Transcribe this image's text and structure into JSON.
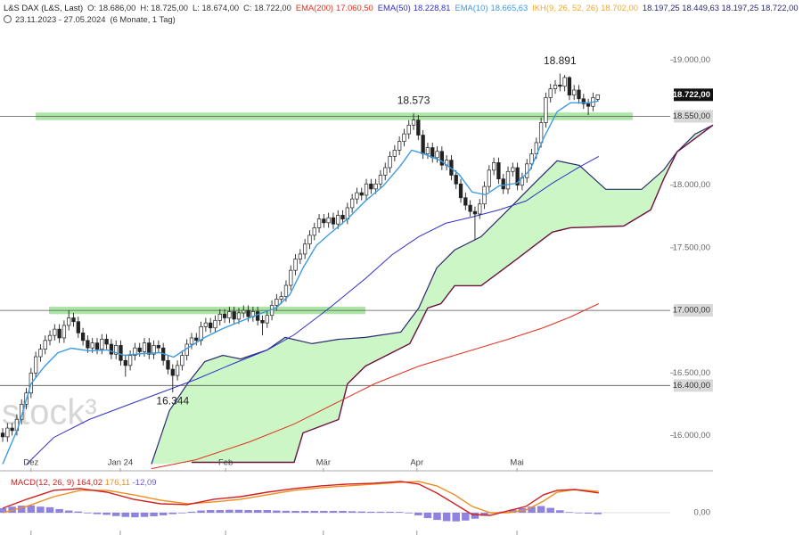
{
  "chart_data": {
    "type": "candlestick",
    "header": {
      "symbol": "L&S DAX (L&S, Last)",
      "ohlc": [
        "O: 18.686,00",
        "H: 18.725,00",
        "L: 18.674,00",
        "C: 18.722,00"
      ],
      "period": "23.11.2023 - 27.05.2024",
      "span": "(6 Monate, 1 Tag)"
    },
    "watermark": "stock³",
    "up_color": "#ffffff",
    "down_color": "#222222",
    "candles": {
      "open": [
        16020,
        15990,
        16060,
        16040,
        16130,
        16250,
        16340,
        16500,
        16630,
        16690,
        16760,
        16800,
        16850,
        16780,
        16880,
        16940,
        16910,
        16820,
        16760,
        16700,
        16740,
        16690,
        16770,
        16730,
        16650,
        16720,
        16600,
        16560,
        16640,
        16700,
        16670,
        16740,
        16650,
        16720,
        16700,
        16600,
        16530,
        16480,
        16560,
        16640,
        16730,
        16780,
        16760,
        16870,
        16900,
        16860,
        16920,
        16970,
        16940,
        16990,
        16930,
        16980,
        17000,
        16950,
        16990,
        16920,
        16900,
        16960,
        17040,
        17090,
        17110,
        17200,
        17320,
        17410,
        17450,
        17530,
        17600,
        17660,
        17730,
        17700,
        17740,
        17690,
        17760,
        17730,
        17820,
        17890,
        17940,
        17920,
        18010,
        17970,
        18010,
        18080,
        18140,
        18230,
        18280,
        18350,
        18410,
        18480,
        18520,
        18400,
        18250,
        18300,
        18220,
        18270,
        18160,
        18200,
        18080,
        18010,
        17900,
        17840,
        17790,
        17770,
        17850,
        17990,
        18120,
        18180,
        18050,
        17970,
        18110,
        18140,
        18000,
        18060,
        18170,
        18250,
        18340,
        18500,
        18700,
        18770,
        18800,
        18790,
        18860,
        18720,
        18760,
        18690,
        18650,
        18630,
        18686
      ],
      "high": [
        16060,
        16100,
        16100,
        16170,
        16290,
        16380,
        16540,
        16670,
        16730,
        16800,
        16840,
        16890,
        16890,
        16920,
        17000,
        16980,
        16950,
        16860,
        16800,
        16780,
        16780,
        16810,
        16810,
        16770,
        16760,
        16760,
        16640,
        16680,
        16740,
        16740,
        16780,
        16780,
        16760,
        16760,
        16740,
        16640,
        16570,
        16600,
        16680,
        16770,
        16820,
        16820,
        16910,
        16940,
        16940,
        16960,
        17010,
        17010,
        17030,
        17030,
        17020,
        17040,
        17040,
        17030,
        17030,
        16960,
        17000,
        17080,
        17130,
        17150,
        17240,
        17360,
        17450,
        17490,
        17570,
        17640,
        17700,
        17770,
        17770,
        17780,
        17780,
        17800,
        17800,
        17860,
        17930,
        17980,
        17980,
        18050,
        18050,
        18050,
        18120,
        18180,
        18270,
        18320,
        18390,
        18450,
        18520,
        18573,
        18560,
        18440,
        18340,
        18340,
        18310,
        18310,
        18240,
        18240,
        18120,
        18050,
        17940,
        17880,
        17830,
        17890,
        18030,
        18160,
        18220,
        18220,
        18090,
        18150,
        18180,
        18180,
        18100,
        18210,
        18290,
        18380,
        18540,
        18740,
        18810,
        18840,
        18891,
        18880,
        18870,
        18800,
        18800,
        18730,
        18690,
        18740,
        18725
      ],
      "low": [
        15950,
        15950,
        16000,
        16000,
        16090,
        16210,
        16300,
        16460,
        16590,
        16650,
        16720,
        16760,
        16740,
        16740,
        16840,
        16870,
        16780,
        16720,
        16660,
        16660,
        16650,
        16650,
        16690,
        16610,
        16610,
        16560,
        16470,
        16520,
        16600,
        16630,
        16630,
        16610,
        16610,
        16660,
        16560,
        16490,
        16344,
        16440,
        16520,
        16600,
        16690,
        16720,
        16720,
        16830,
        16820,
        16820,
        16880,
        16900,
        16900,
        16890,
        16890,
        16940,
        16910,
        16910,
        16880,
        16800,
        16860,
        16920,
        17000,
        17050,
        17070,
        17160,
        17280,
        17370,
        17410,
        17490,
        17560,
        17620,
        17660,
        17660,
        17650,
        17650,
        17690,
        17690,
        17780,
        17850,
        17880,
        17880,
        17930,
        17930,
        17970,
        18040,
        18100,
        18190,
        18240,
        18310,
        18370,
        18440,
        18360,
        18210,
        18210,
        18180,
        18180,
        18120,
        18120,
        18040,
        17970,
        17860,
        17800,
        17750,
        17560,
        17730,
        17810,
        17950,
        18080,
        18010,
        17930,
        17930,
        18070,
        17960,
        17960,
        18020,
        18130,
        18210,
        18300,
        18460,
        18660,
        18730,
        18750,
        18750,
        18680,
        18680,
        18650,
        18610,
        18560,
        18590,
        18674
      ],
      "close": [
        15990,
        16060,
        16040,
        16130,
        16250,
        16340,
        16500,
        16630,
        16690,
        16760,
        16800,
        16850,
        16780,
        16880,
        16940,
        16910,
        16820,
        16760,
        16700,
        16740,
        16690,
        16770,
        16730,
        16650,
        16720,
        16600,
        16560,
        16640,
        16700,
        16670,
        16740,
        16650,
        16720,
        16700,
        16600,
        16530,
        16480,
        16560,
        16640,
        16730,
        16780,
        16760,
        16870,
        16900,
        16860,
        16920,
        16970,
        16940,
        16990,
        16930,
        16980,
        17000,
        16950,
        16990,
        16920,
        16900,
        16960,
        17040,
        17090,
        17110,
        17200,
        17320,
        17410,
        17450,
        17530,
        17600,
        17660,
        17730,
        17700,
        17740,
        17690,
        17760,
        17730,
        17820,
        17890,
        17940,
        17920,
        18010,
        17970,
        18010,
        18080,
        18140,
        18230,
        18280,
        18350,
        18410,
        18480,
        18520,
        18400,
        18250,
        18300,
        18220,
        18270,
        18160,
        18200,
        18080,
        18010,
        17900,
        17840,
        17790,
        17770,
        17850,
        17990,
        18120,
        18180,
        18050,
        17970,
        18110,
        18140,
        18000,
        18060,
        18170,
        18250,
        18340,
        18500,
        18700,
        18770,
        18800,
        18790,
        18860,
        18720,
        18760,
        18690,
        18650,
        18630,
        18700,
        18722
      ]
    },
    "xlim": [
      -0.57,
      150.4
    ],
    "xticks": [
      {
        "value": 6,
        "label": "Dez"
      },
      {
        "value": 24.9,
        "label": "Jan 24"
      },
      {
        "value": 47.2,
        "label": "Feb"
      },
      {
        "value": 67.9,
        "label": "Mär"
      },
      {
        "value": 87.7,
        "label": "Apr"
      },
      {
        "value": 108.9,
        "label": "Mai"
      }
    ],
    "ylim": [
      15740,
      19230
    ],
    "yticks": [
      {
        "value": 19000,
        "label": "19.000,00"
      },
      {
        "value": 18000,
        "label": "18.000,00"
      },
      {
        "value": 17500,
        "label": "17.500,00"
      },
      {
        "value": 16500,
        "label": "16.500,00"
      },
      {
        "value": 16000,
        "label": "16.000,00"
      }
    ],
    "levels": [
      {
        "value": 18550,
        "label": "18.550,00"
      },
      {
        "value": 17000,
        "label": "17.000,00"
      },
      {
        "value": 16400,
        "label": "16.400,00"
      }
    ],
    "last_price": {
      "value": 18722,
      "label": "18.722,00"
    },
    "zones": [
      {
        "from": 18520,
        "to": 18580,
        "x_from": 7,
        "x_to": 133.4
      },
      {
        "from": 16970,
        "to": 17030,
        "x_from": 9.8,
        "x_to": 76.8
      }
    ],
    "annotations": [
      {
        "label": "18.891",
        "index": 118,
        "value": 18891
      },
      {
        "label": "18.573",
        "index": 87,
        "value": 18573
      },
      {
        "label": "16.344",
        "index": 36,
        "value": 16344
      }
    ],
    "series": [
      {
        "name": "EMA(200)",
        "legend_value": "17.060,50",
        "color": "#e0301e",
        "x": [
          31.5,
          40.9,
          52.3,
          61.7,
          71.1,
          78.7,
          88.1,
          97.5,
          107,
          114.5,
          120.2,
          126.2
        ],
        "values": [
          15736,
          15807,
          15950,
          16092,
          16270,
          16413,
          16555,
          16662,
          16769,
          16862,
          16947,
          17054
        ]
      },
      {
        "name": "EMA(50)",
        "legend_value": "18.228,81",
        "color": "#3030c8",
        "x": [
          5.1,
          10.8,
          18.3,
          25.8,
          33.4,
          40.9,
          48.5,
          56,
          61.7,
          69.2,
          76.8,
          82.5,
          88.1,
          93.8,
          99.4,
          105.1,
          110.8,
          116.4,
          122.1,
          126.2
        ],
        "values": [
          15772,
          15985,
          16128,
          16235,
          16342,
          16449,
          16570,
          16684,
          16805,
          17019,
          17254,
          17446,
          17589,
          17696,
          17746,
          17803,
          17874,
          18016,
          18145,
          18230
        ]
      },
      {
        "name": "EMA(10)",
        "legend_value": "18.665,63",
        "color": "#3d9be0",
        "x": [
          0,
          3.2,
          6,
          8.9,
          11.7,
          14.5,
          18.3,
          22.1,
          25.8,
          29.6,
          33.4,
          36.2,
          39.1,
          42.8,
          46.6,
          50.4,
          54.2,
          57.9,
          60.8,
          63.6,
          66.4,
          69.2,
          73,
          76.8,
          80.6,
          84.3,
          86.6,
          89.1,
          92.8,
          96.6,
          99.4,
          102.3,
          105.1,
          108.9,
          111.7,
          114.5,
          117.4,
          120.2,
          124,
          126.2
        ],
        "values": [
          15772,
          16057,
          16413,
          16555,
          16662,
          16698,
          16677,
          16684,
          16641,
          16655,
          16662,
          16627,
          16698,
          16784,
          16855,
          16912,
          16969,
          17019,
          17126,
          17339,
          17518,
          17610,
          17731,
          17874,
          17995,
          18159,
          18280,
          18252,
          18195,
          18088,
          17945,
          17924,
          17995,
          18016,
          18123,
          18373,
          18587,
          18658,
          18658,
          18672
        ]
      }
    ],
    "ichimoku": {
      "name": "IKH(9, 26, 52, 26)",
      "legend_value": "18.702,00",
      "legend_values": "18.197,25  18.449,63  18.197,25  18.722,00",
      "color": "#f0a830",
      "cloud_color": "#c8f5c0",
      "span_a": {
        "color": "#2a2a70",
        "x": [
          31.5,
          35.3,
          39.1,
          42.8,
          46.6,
          50.4,
          56,
          59.8,
          65.5,
          71.1,
          76.8,
          84.3,
          88.1,
          91.9,
          95.7,
          101.3,
          107,
          112.6,
          117.4,
          122.1,
          127.7,
          135.3,
          140,
          142.8,
          146.6,
          150.4
        ],
        "values": [
          15772,
          16199,
          16413,
          16591,
          16641,
          16612,
          16684,
          16784,
          16734,
          16769,
          16784,
          16826,
          17019,
          17339,
          17482,
          17589,
          17803,
          18016,
          18195,
          18159,
          17967,
          17967,
          18123,
          18266,
          18408,
          18480
        ]
      },
      "span_b": {
        "color": "#6e1040",
        "x": [
          40,
          61.7,
          63.6,
          71.1,
          73,
          76.8,
          86.2,
          88.1,
          90,
          92.8,
          95.7,
          101.3,
          105.1,
          108.9,
          112.6,
          116.4,
          120.2,
          131.5,
          137.2,
          140,
          142.8,
          150.4
        ],
        "values": [
          15786,
          15786,
          16021,
          16128,
          16413,
          16555,
          16734,
          16876,
          17019,
          17054,
          17197,
          17197,
          17304,
          17411,
          17518,
          17625,
          17660,
          17674,
          17803,
          18052,
          18266,
          18480
        ]
      }
    },
    "macd": {
      "name": "MACD(12, 26, 9)",
      "ylim": [
        -170,
        310
      ],
      "yticks": [
        {
          "value": 0,
          "label": "0,00"
        }
      ],
      "x": [
        0,
        5.1,
        10.8,
        16.4,
        22.1,
        27.7,
        33.4,
        39.1,
        44.7,
        50.4,
        56,
        61.7,
        67.4,
        73,
        78.7,
        84.3,
        88.1,
        91.9,
        95.7,
        99.4,
        103.2,
        107,
        110.8,
        114.5,
        117.4,
        121.1,
        126.2
      ],
      "line": {
        "legend_value": "164,02",
        "color": "#d02020",
        "values": [
          37,
          111,
          185,
          200,
          170,
          111,
          74,
          67,
          111,
          133,
          170,
          200,
          222,
          237,
          244,
          259,
          237,
          163,
          74,
          -15,
          -22,
          15,
          52,
          148,
          185,
          192,
          164
        ]
      },
      "signal": {
        "legend_value": "176,11",
        "color": "#f08c20",
        "values": [
          0,
          52,
          133,
          185,
          185,
          148,
          104,
          74,
          89,
          111,
          148,
          185,
          207,
          222,
          237,
          252,
          259,
          222,
          148,
          52,
          0,
          0,
          22,
          96,
          170,
          192,
          176
        ]
      },
      "histogram": {
        "legend_value": "-12,09",
        "color": "#6a5ad8",
        "x": [
          0,
          2,
          4,
          6,
          8,
          10,
          12,
          14,
          16,
          18,
          20,
          22,
          24,
          26,
          28,
          30,
          32,
          34,
          36,
          38,
          40,
          42,
          44,
          46,
          48,
          50,
          52,
          54,
          56,
          58,
          60,
          62,
          64,
          66,
          68,
          70,
          72,
          74,
          76,
          78,
          80,
          82,
          84,
          86,
          88,
          90,
          92,
          94,
          96,
          98,
          100,
          102,
          104,
          106,
          108,
          110,
          112,
          114,
          116,
          118,
          120,
          122,
          124,
          126
        ],
        "values": [
          37,
          50,
          58,
          60,
          50,
          45,
          30,
          18,
          10,
          -5,
          -12,
          -18,
          -28,
          -35,
          -38,
          -35,
          -30,
          -22,
          -12,
          -5,
          8,
          18,
          22,
          22,
          24,
          24,
          22,
          22,
          22,
          18,
          16,
          15,
          15,
          15,
          15,
          15,
          15,
          12,
          10,
          8,
          8,
          8,
          6,
          -5,
          -22,
          -45,
          -60,
          -70,
          -72,
          -65,
          -50,
          -25,
          -5,
          10,
          25,
          38,
          50,
          55,
          40,
          20,
          5,
          -2,
          -8,
          -12
        ]
      }
    }
  }
}
